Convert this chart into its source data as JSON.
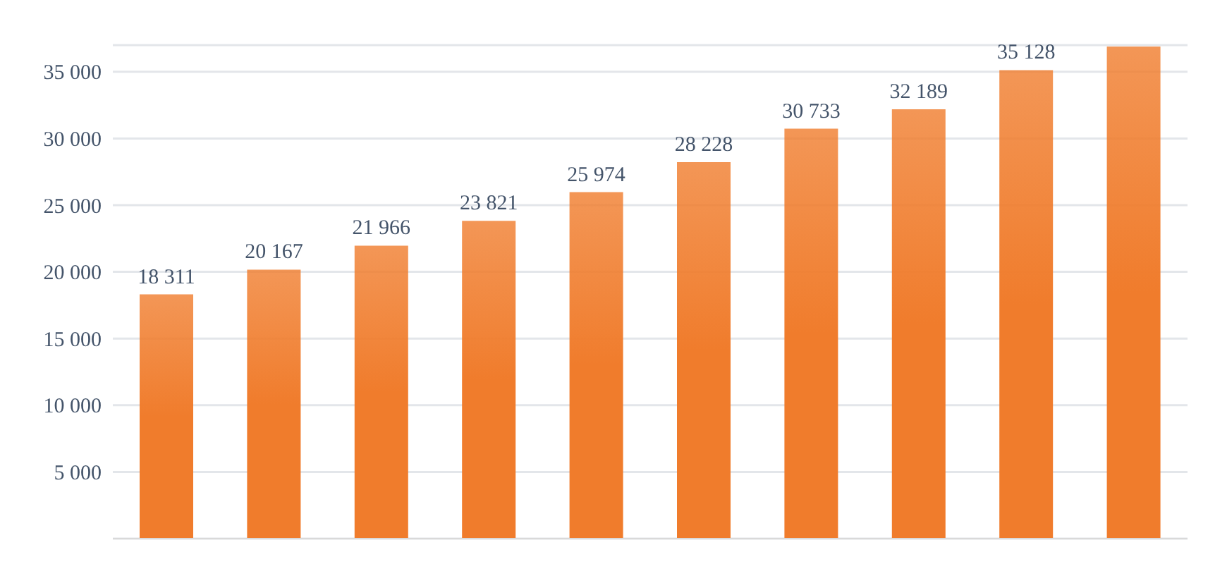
{
  "chart_data": {
    "type": "bar",
    "categories": [
      null,
      null,
      null,
      null,
      null,
      null,
      null,
      null,
      null,
      null
    ],
    "values": [
      18311,
      20167,
      21966,
      23821,
      25974,
      28228,
      30733,
      32189,
      35128,
      36900
    ],
    "value_labels": [
      "18 311",
      "20 167",
      "21 966",
      "23 821",
      "25 974",
      "28 228",
      "30 733",
      "32 189",
      "35 128",
      null
    ],
    "color": "#f07c2c",
    "ylim": [
      0,
      37000
    ],
    "yticks": [
      {
        "value": 5000,
        "label": "5 000"
      },
      {
        "value": 10000,
        "label": "10 000"
      },
      {
        "value": 15000,
        "label": "15 000"
      },
      {
        "value": 20000,
        "label": "20 000"
      },
      {
        "value": 25000,
        "label": "25 000"
      },
      {
        "value": 30000,
        "label": "30 000"
      },
      {
        "value": 35000,
        "label": "35 000"
      }
    ],
    "grid": "y",
    "legend": false
  }
}
